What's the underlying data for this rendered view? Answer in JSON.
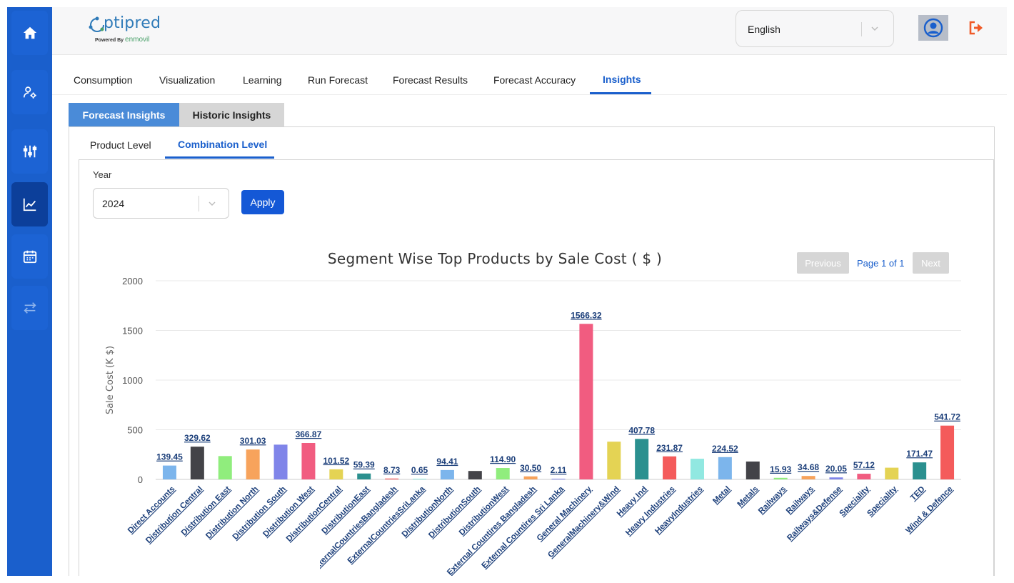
{
  "app": {
    "logo_text": "ptipred",
    "logo_powered_by": "Powered By",
    "logo_brand": "enmovil"
  },
  "header": {
    "language": "English"
  },
  "sidebar": {
    "items": [
      {
        "icon": "home-icon",
        "active": false
      },
      {
        "icon": "user-settings-icon",
        "active": false
      },
      {
        "icon": "sliders-icon",
        "active": false
      },
      {
        "icon": "line-chart-icon",
        "active": true
      },
      {
        "icon": "calendar-icon",
        "active": false
      },
      {
        "icon": "transfer-icon",
        "active": false
      }
    ]
  },
  "nav": {
    "tabs": [
      {
        "label": "Consumption"
      },
      {
        "label": "Visualization"
      },
      {
        "label": "Learning"
      },
      {
        "label": "Run Forecast"
      },
      {
        "label": "Forecast Results"
      },
      {
        "label": "Forecast Accuracy"
      },
      {
        "label": "Insights"
      }
    ],
    "active": "Insights"
  },
  "subtabs": {
    "forecast": "Forecast Insights",
    "historic": "Historic Insights"
  },
  "level_tabs": {
    "product": "Product Level",
    "combination": "Combination Level"
  },
  "filters": {
    "year_label": "Year",
    "year_value": "2024",
    "apply_label": "Apply"
  },
  "pagination": {
    "previous": "Previous",
    "info": "Page 1 of 1",
    "next": "Next"
  },
  "colors": {
    "primary": "#1a5fcc",
    "sidebar": "#1a5fcc",
    "sidebar_active": "#0c3f9a"
  },
  "chart_data": {
    "type": "bar",
    "title": "Segment Wise Top Products by Sale Cost ( $ )",
    "ylabel": "Sale Cost (K $)",
    "xlabel": "",
    "ylim": [
      0,
      2000
    ],
    "yticks": [
      "0",
      "500",
      "1000",
      "1500",
      "2000"
    ],
    "grid": true,
    "bars": [
      {
        "category": "Direct Accounts",
        "value": 139.45,
        "label": "139.45",
        "color": "#7cb5ec"
      },
      {
        "category": "Distribution Central",
        "value": 329.62,
        "label": "329.62",
        "color": "#434348"
      },
      {
        "category": "Distribution East",
        "value": 235,
        "label": "",
        "color": "#90ed7d"
      },
      {
        "category": "Distribution North",
        "value": 301.03,
        "label": "301.03",
        "color": "#f7a35c"
      },
      {
        "category": "Distribution South",
        "value": 350,
        "label": "",
        "color": "#8085e9"
      },
      {
        "category": "Distribution West",
        "value": 366.87,
        "label": "366.87",
        "color": "#f15c80"
      },
      {
        "category": "DistributionCentral",
        "value": 101.52,
        "label": "101.52",
        "color": "#e4d354"
      },
      {
        "category": "DistributionEast",
        "value": 59.39,
        "label": "59.39",
        "color": "#2b908f"
      },
      {
        "category": "ExternalCountriesBangladesh",
        "value": 8.73,
        "label": "8.73",
        "color": "#f45b5b"
      },
      {
        "category": "ExternalCountriesSriLanka",
        "value": 0.65,
        "label": "0.65",
        "color": "#91e8e1"
      },
      {
        "category": "DistributionNorth",
        "value": 94.41,
        "label": "94.41",
        "color": "#7cb5ec"
      },
      {
        "category": "DistributionSouth",
        "value": 85,
        "label": "",
        "color": "#434348"
      },
      {
        "category": "DistributionWest",
        "value": 114.9,
        "label": "114.90",
        "color": "#90ed7d"
      },
      {
        "category": "External Countires Bangladesh",
        "value": 30.5,
        "label": "30.50",
        "color": "#f7a35c"
      },
      {
        "category": "External Countires Sri Lanka",
        "value": 2.11,
        "label": "2.11",
        "color": "#8085e9"
      },
      {
        "category": "General Machinery",
        "value": 1566.32,
        "label": "1566.32",
        "color": "#f15c80"
      },
      {
        "category": "GeneralMachinery&Wind",
        "value": 380,
        "label": "",
        "color": "#e4d354"
      },
      {
        "category": "Heavy Ind",
        "value": 407.78,
        "label": "407.78",
        "color": "#2b908f"
      },
      {
        "category": "Heavy Industries",
        "value": 231.87,
        "label": "231.87",
        "color": "#f45b5b"
      },
      {
        "category": "HeavyIndustries",
        "value": 208,
        "label": "",
        "color": "#91e8e1"
      },
      {
        "category": "Metal",
        "value": 224.52,
        "label": "224.52",
        "color": "#7cb5ec"
      },
      {
        "category": "Metals",
        "value": 180,
        "label": "",
        "color": "#434348"
      },
      {
        "category": "Railways",
        "value": 15.93,
        "label": "15.93",
        "color": "#90ed7d"
      },
      {
        "category": "Railways",
        "value": 34.68,
        "label": "34.68",
        "color": "#f7a35c"
      },
      {
        "category": "Railways&Defense",
        "value": 20.05,
        "label": "20.05",
        "color": "#8085e9"
      },
      {
        "category": "Speciality",
        "value": 57.12,
        "label": "57.12",
        "color": "#f15c80"
      },
      {
        "category": "Speciality",
        "value": 118,
        "label": "",
        "color": "#e4d354"
      },
      {
        "category": "TED",
        "value": 171.47,
        "label": "171.47",
        "color": "#2b908f"
      },
      {
        "category": "Wind & Defence",
        "value": 541.72,
        "label": "541.72",
        "color": "#f45b5b"
      }
    ]
  }
}
